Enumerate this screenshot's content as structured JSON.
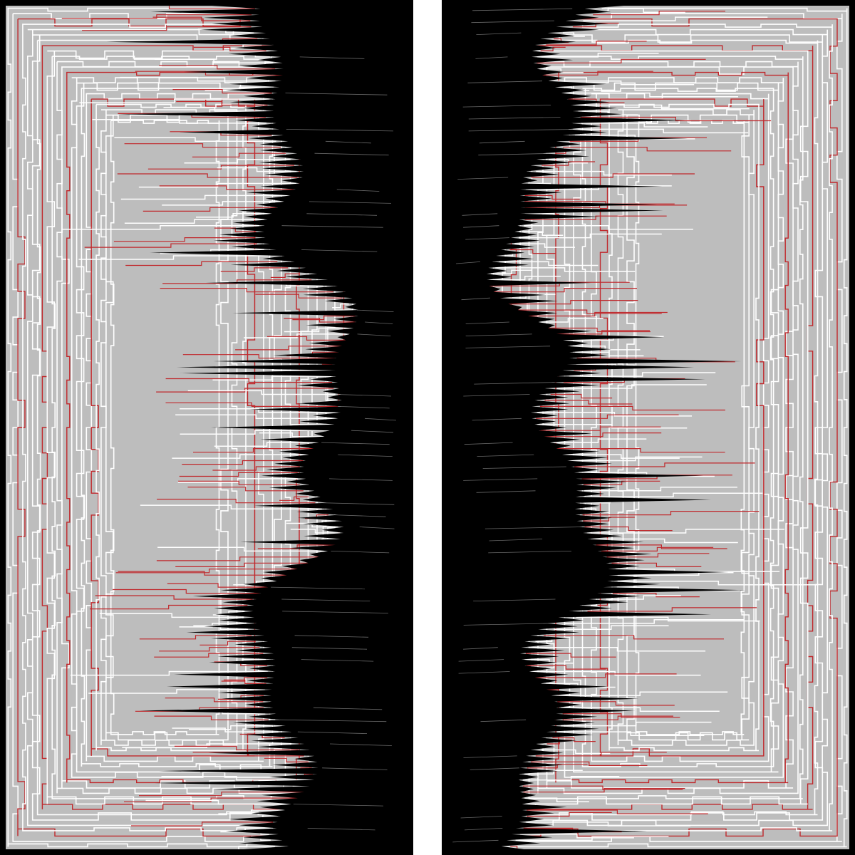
{
  "artwork": {
    "colors": {
      "background": "#ffffff",
      "frame": "#000000",
      "contour_fill": "#bdbdbd",
      "contour_line": "#ffffff",
      "accent_line": "#c0282c",
      "void": "#000000",
      "central_strip": "#ffffff"
    },
    "panels": [
      "left-panel",
      "right-panel"
    ],
    "panel_orientation": {
      "left-panel": "spikes-point-right",
      "right-panel": "spikes-point-left"
    },
    "contour_levels": 22,
    "accent_every_n_levels": 5,
    "spike_rows": 140,
    "random_seed": 1337
  }
}
